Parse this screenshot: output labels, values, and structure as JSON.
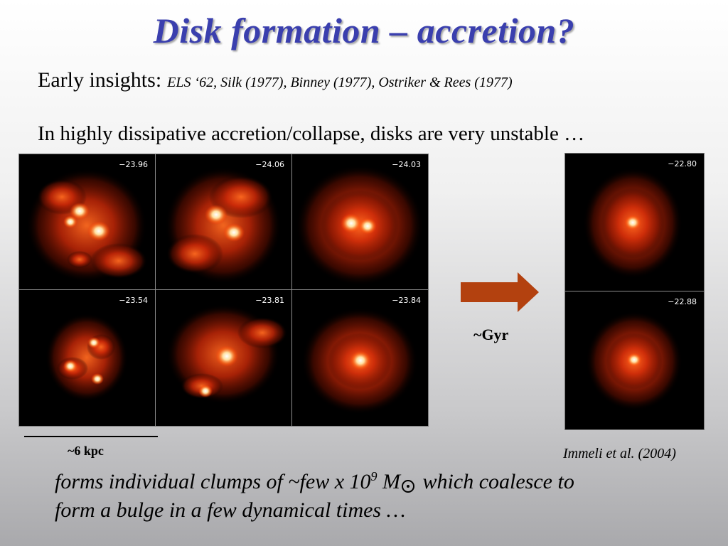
{
  "slide": {
    "title": "Disk formation – accretion?",
    "early_label": "Early insights:",
    "early_refs": "ELS ‘62, Silk (1977), Binney (1977), Ostriker & Rees (1977)",
    "line2": "In highly dissipative accretion/collapse, disks are very unstable …",
    "panels_left": [
      "−23.96",
      "−24.06",
      "−24.03",
      "−23.54",
      "−23.81",
      "−23.84"
    ],
    "panels_right": [
      "−22.80",
      "−22.88"
    ],
    "arrow_label": "~Gyr",
    "scale_label": "~6 kpc",
    "citation": "Immeli et al. (2004)",
    "bottom_text_a": "forms individual clumps of ~few x 10",
    "bottom_exp": "9",
    "bottom_text_b": " M",
    "bottom_text_c": " which coalesce to",
    "bottom_text_d": "form a bulge in a few dynamical times …"
  },
  "colors": {
    "title": "#3a3fae",
    "arrow": "#b3410f",
    "galaxy_core": "#ffffff",
    "galaxy_glow": "#ff4a10"
  }
}
